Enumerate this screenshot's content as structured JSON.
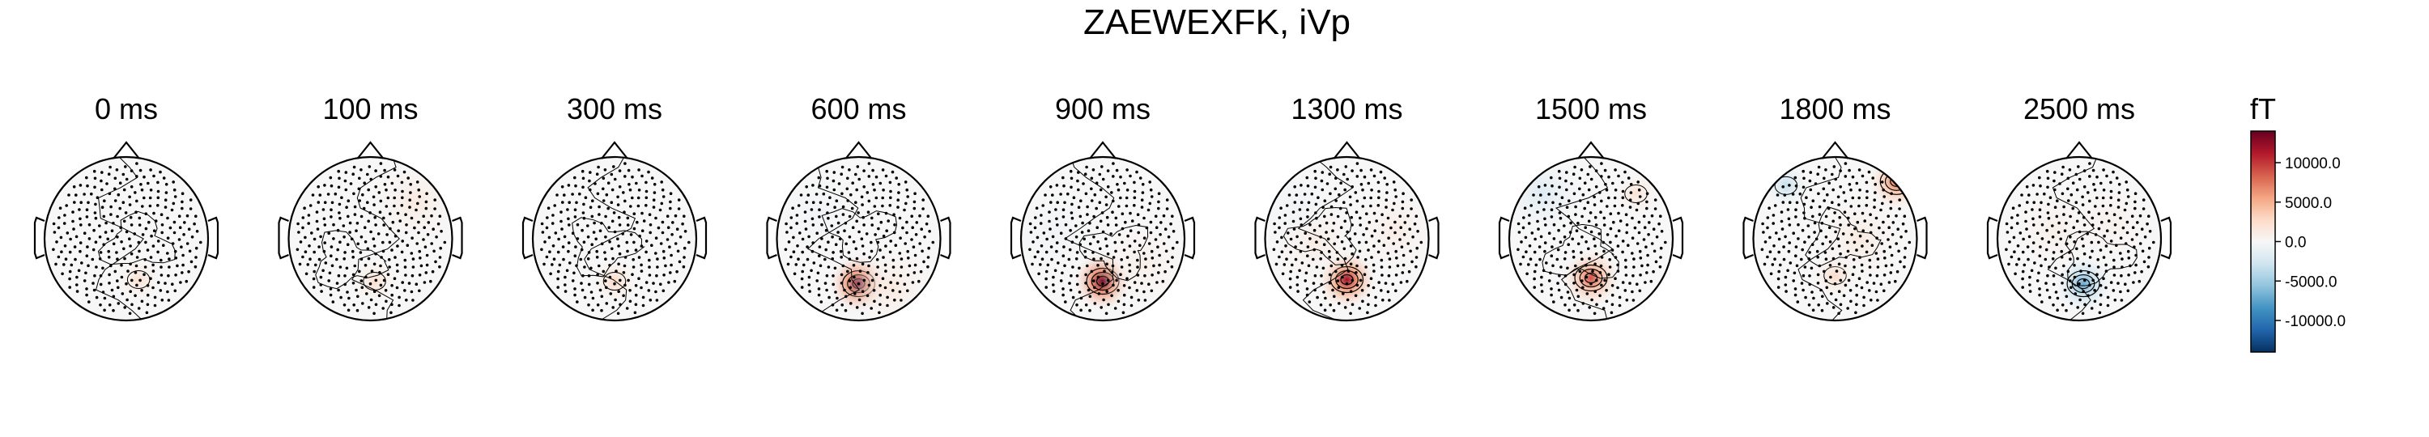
{
  "figure": {
    "title": "ZAEWEXFK, iVp"
  },
  "chart_data": {
    "type": "heatmap",
    "subtype": "topomap-series",
    "title": "ZAEWEXFK, iVp",
    "panels": [
      {
        "label": "0 ms",
        "time_ms": 0,
        "features": [
          {
            "x": 0.15,
            "y": -0.5,
            "amp": 2500
          }
        ]
      },
      {
        "label": "100 ms",
        "time_ms": 100,
        "features": [
          {
            "x": 0.05,
            "y": -0.52,
            "amp": 2500
          },
          {
            "x": 0.55,
            "y": 0.45,
            "amp": 1500
          }
        ]
      },
      {
        "label": "300 ms",
        "time_ms": 300,
        "features": [
          {
            "x": 0.0,
            "y": -0.52,
            "amp": 3000
          }
        ]
      },
      {
        "label": "600 ms",
        "time_ms": 600,
        "features": [
          {
            "x": 0.0,
            "y": -0.55,
            "amp": 14000
          },
          {
            "x": 0.4,
            "y": -0.6,
            "amp": 1500
          },
          {
            "x": -0.5,
            "y": 0.3,
            "amp": -600
          }
        ]
      },
      {
        "label": "900 ms",
        "time_ms": 900,
        "features": [
          {
            "x": 0.0,
            "y": -0.52,
            "amp": 14000
          },
          {
            "x": 0.5,
            "y": -0.3,
            "amp": 1000
          },
          {
            "x": -0.6,
            "y": 0.1,
            "amp": -600
          }
        ]
      },
      {
        "label": "1300 ms",
        "time_ms": 1300,
        "features": [
          {
            "x": 0.0,
            "y": -0.5,
            "amp": 12000
          },
          {
            "x": -0.4,
            "y": 0.0,
            "amp": 1500
          },
          {
            "x": 0.6,
            "y": 0.1,
            "amp": 1200
          },
          {
            "x": -0.6,
            "y": 0.4,
            "amp": -600
          }
        ]
      },
      {
        "label": "1500 ms",
        "time_ms": 1500,
        "features": [
          {
            "x": 0.0,
            "y": -0.48,
            "amp": 9000
          },
          {
            "x": 0.55,
            "y": 0.55,
            "amp": 2200
          },
          {
            "x": -0.6,
            "y": 0.55,
            "amp": -2000
          }
        ]
      },
      {
        "label": "1800 ms",
        "time_ms": 1800,
        "features": [
          {
            "x": 0.75,
            "y": 0.7,
            "amp": 8000
          },
          {
            "x": -0.6,
            "y": 0.65,
            "amp": -3500
          },
          {
            "x": 0.0,
            "y": -0.45,
            "amp": 3000
          },
          {
            "x": 0.3,
            "y": 0.0,
            "amp": 1500
          }
        ]
      },
      {
        "label": "2500 ms",
        "time_ms": 2500,
        "features": [
          {
            "x": 0.05,
            "y": -0.55,
            "amp": -7000
          },
          {
            "x": -0.3,
            "y": 0.1,
            "amp": 1000
          },
          {
            "x": 0.4,
            "y": 0.2,
            "amp": 800
          }
        ]
      }
    ],
    "colorbar": {
      "unit": "fT",
      "min": -14000,
      "max": 14000,
      "ticks": [
        10000,
        5000,
        0,
        -5000,
        -10000
      ],
      "tick_labels": [
        "10000.0",
        "5000.0",
        "0.0",
        "-5000.0",
        "-10000.0"
      ],
      "colormap": "RdBu_r",
      "colors": [
        "#053061",
        "#2166ac",
        "#4393c3",
        "#92c5de",
        "#d1e5f0",
        "#f7f7f7",
        "#fddbc7",
        "#f4a582",
        "#d6604d",
        "#b2182b",
        "#67001f"
      ]
    }
  }
}
